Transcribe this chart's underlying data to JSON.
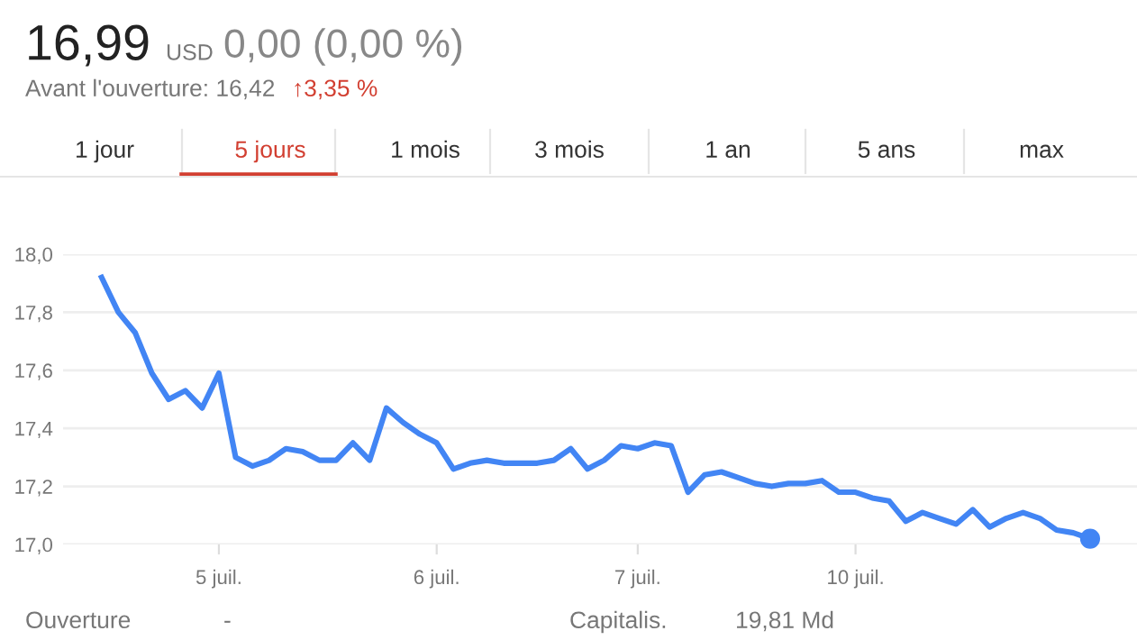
{
  "chart_data": {
    "type": "line",
    "title": "16,99",
    "annotations": [
      "USD",
      "0,00 (0,00 %)",
      "Avant l'ouverture: 16,42",
      "↑3,35 %",
      "1 jour",
      "5 jours",
      "1 mois",
      "3 mois",
      "1 an",
      "5 ans",
      "max",
      "Ouverture",
      "-",
      "Capitalis.",
      "19,81 Md"
    ],
    "categories": [
      null,
      null,
      null,
      null,
      null,
      null,
      null,
      "5 juil.",
      null,
      null,
      null,
      null,
      null,
      null,
      null,
      null,
      null,
      null,
      null,
      null,
      "6 juil.",
      null,
      null,
      null,
      null,
      null,
      null,
      null,
      null,
      null,
      null,
      null,
      "7 juil.",
      null,
      null,
      null,
      null,
      null,
      null,
      null,
      null,
      null,
      null,
      null,
      null,
      "10 juil.",
      null,
      null,
      null,
      null,
      null,
      null,
      null,
      null,
      null,
      null,
      null,
      null,
      null,
      null
    ],
    "series": [
      {
        "color": "#4285f4",
        "values": [
          17.92,
          17.8,
          17.73,
          17.59,
          17.5,
          17.53,
          17.47,
          17.59,
          17.3,
          17.27,
          17.29,
          17.33,
          17.32,
          17.29,
          17.29,
          17.35,
          17.29,
          17.47,
          17.42,
          17.38,
          17.35,
          17.26,
          17.28,
          17.29,
          17.28,
          17.28,
          17.28,
          17.29,
          17.33,
          17.26,
          17.29,
          17.34,
          17.33,
          17.35,
          17.34,
          17.18,
          17.24,
          17.25,
          17.23,
          17.21,
          17.2,
          17.21,
          17.21,
          17.22,
          17.18,
          17.18,
          17.16,
          17.15,
          17.08,
          17.11,
          17.09,
          17.07,
          17.12,
          17.06,
          17.09,
          17.11,
          17.09,
          17.05,
          17.04,
          17.02
        ]
      }
    ],
    "ylim": [
      17.0,
      18.0
    ],
    "yticks": [
      {
        "value": 17.0,
        "label": "17,0"
      },
      {
        "value": 17.2,
        "label": "17,2"
      },
      {
        "value": 17.4,
        "label": "17,4"
      },
      {
        "value": 17.6,
        "label": "17,6"
      },
      {
        "value": 17.8,
        "label": "17,8"
      },
      {
        "value": 18.0,
        "label": "18,0"
      }
    ],
    "grid": "y",
    "legend": false
  }
}
